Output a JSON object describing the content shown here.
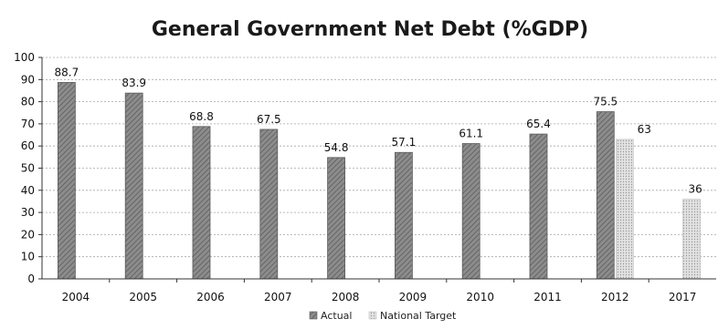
{
  "chart_data": {
    "type": "bar",
    "title": "General Government Net Debt (%GDP)",
    "xlabel": "",
    "ylabel": "",
    "categories": [
      "2004",
      "2005",
      "2006",
      "2007",
      "2008",
      "2009",
      "2010",
      "2011",
      "2012",
      "2017"
    ],
    "series": [
      {
        "name": "Actual",
        "values": [
          88.7,
          83.9,
          68.8,
          67.5,
          54.8,
          57.1,
          61.1,
          65.4,
          75.5,
          null
        ]
      },
      {
        "name": "National Target",
        "values": [
          null,
          null,
          null,
          null,
          null,
          null,
          null,
          null,
          63,
          36
        ]
      }
    ],
    "data_labels": [
      "88.7",
      "83.9",
      "68.8",
      "67.5",
      "54.8",
      "57.1",
      "61.1",
      "65.4",
      "75.5",
      "63",
      "36"
    ],
    "ylim": [
      0,
      100
    ],
    "yticks": [
      0,
      10,
      20,
      30,
      40,
      50,
      60,
      70,
      80,
      90,
      100
    ],
    "grid": true,
    "legend_position": "bottom",
    "colors": {
      "actual": "#7f7f7f",
      "target": "#d4d4d4",
      "grid": "#a6a6a6"
    }
  }
}
